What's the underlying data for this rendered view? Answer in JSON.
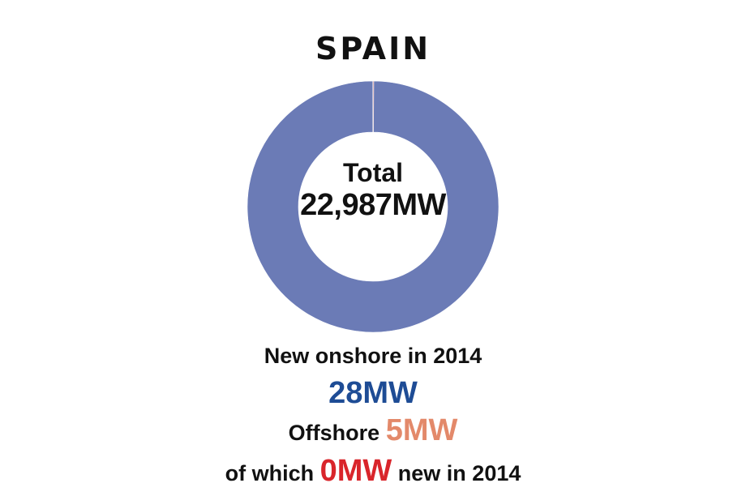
{
  "colors": {
    "onshore": "#6b7bb6",
    "offshore": "#d88a8a",
    "new_onshore_text": "#1e4c95",
    "offshore_text": "#e3896a",
    "new_offshore_text": "#d9252b"
  },
  "chart_data": {
    "type": "pie",
    "title": "SPAIN",
    "center_label": "Total",
    "center_value": "22,987MW",
    "slices": [
      {
        "label": "Onshore",
        "value": 22982
      },
      {
        "label": "Offshore",
        "value": 5
      }
    ]
  },
  "footer": {
    "new_onshore_label": "New onshore in 2014",
    "new_onshore_value": "28MW",
    "offshore_label": "Offshore",
    "offshore_value": "5MW",
    "of_which_prefix": "of which",
    "new_offshore_value": "0MW",
    "of_which_suffix": "new in 2014"
  }
}
